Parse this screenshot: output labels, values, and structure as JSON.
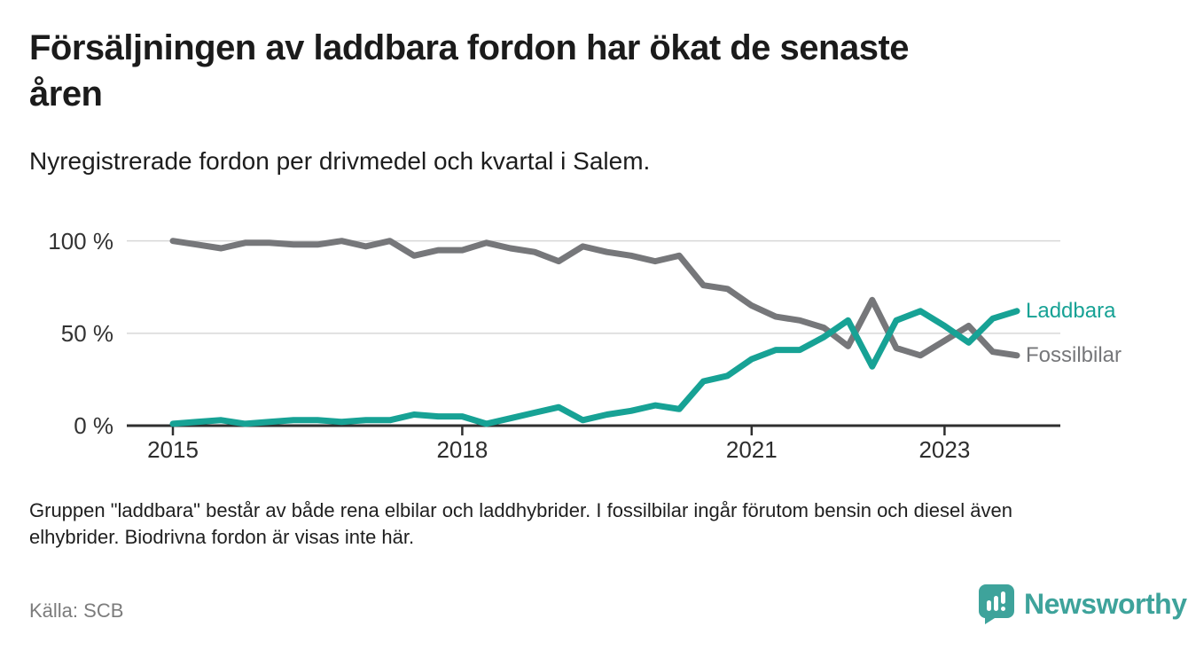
{
  "header": {
    "title": "Försäljningen av laddbara fordon har ökat de senaste åren",
    "title_lines": [
      "Försäljningen av laddbara fordon har ökat de senaste",
      "åren"
    ],
    "subtitle": "Nyregistrerade fordon per drivmedel och kvartal i Salem."
  },
  "footer": {
    "note": "Gruppen \"laddbara\" består av både rena elbilar och laddhybrider. I fossilbilar ingår förutom bensin och diesel även elhybrider. Biodrivna fordon är visas inte här.",
    "note_lines": [
      "Gruppen \"laddbara\" består av både rena elbilar och laddhybrider. I fossilbilar ingår förutom bensin och diesel även",
      "elhybrider. Biodrivna fordon är visas inte här."
    ],
    "source": "Källa: SCB"
  },
  "branding": {
    "name": "Newsworthy",
    "color": "#3EA39B"
  },
  "colors": {
    "laddbara": "#17A295",
    "fossilbilar": "#76777A",
    "gridline": "#D8D8D8",
    "axis": "#2F2F2F",
    "tick_text": "#2D2D2D"
  },
  "chart_data": {
    "type": "line",
    "unit": "%",
    "grid": "horizontal",
    "ylim": [
      0,
      100
    ],
    "legend_position": "right-of-line-end",
    "categories": [
      "2015 Q1",
      "2015 Q2",
      "2015 Q3",
      "2015 Q4",
      "2016 Q1",
      "2016 Q2",
      "2016 Q3",
      "2016 Q4",
      "2017 Q1",
      "2017 Q2",
      "2017 Q3",
      "2017 Q4",
      "2018 Q1",
      "2018 Q2",
      "2018 Q3",
      "2018 Q4",
      "2019 Q1",
      "2019 Q2",
      "2019 Q3",
      "2019 Q4",
      "2020 Q1",
      "2020 Q2",
      "2020 Q3",
      "2020 Q4",
      "2021 Q1",
      "2021 Q2",
      "2021 Q3",
      "2021 Q4",
      "2022 Q1",
      "2022 Q2",
      "2022 Q3",
      "2022 Q4",
      "2023 Q1",
      "2023 Q2",
      "2023 Q3",
      "2023 Q4"
    ],
    "series": [
      {
        "name": "Laddbara",
        "color": "#17A295",
        "values": [
          1,
          2,
          3,
          1,
          2,
          3,
          3,
          2,
          3,
          3,
          6,
          5,
          5,
          1,
          4,
          7,
          10,
          3,
          6,
          8,
          11,
          9,
          24,
          27,
          36,
          41,
          41,
          48,
          57,
          32,
          57,
          62,
          54,
          45,
          58,
          62
        ]
      },
      {
        "name": "Fossilbilar",
        "color": "#76777A",
        "values": [
          100,
          98,
          96,
          99,
          99,
          98,
          98,
          100,
          97,
          100,
          92,
          95,
          95,
          99,
          96,
          94,
          89,
          97,
          94,
          92,
          89,
          92,
          76,
          74,
          65,
          59,
          57,
          53,
          43,
          68,
          42,
          38,
          46,
          54,
          40,
          38
        ]
      }
    ],
    "y_ticks": [
      {
        "label": "0 %",
        "value": 0
      },
      {
        "label": "50 %",
        "value": 50
      },
      {
        "label": "100 %",
        "value": 100
      }
    ],
    "x_ticks": [
      {
        "label": "2015",
        "index": 0
      },
      {
        "label": "2018",
        "index": 12
      },
      {
        "label": "2021",
        "index": 24
      },
      {
        "label": "2023",
        "index": 32
      }
    ]
  }
}
